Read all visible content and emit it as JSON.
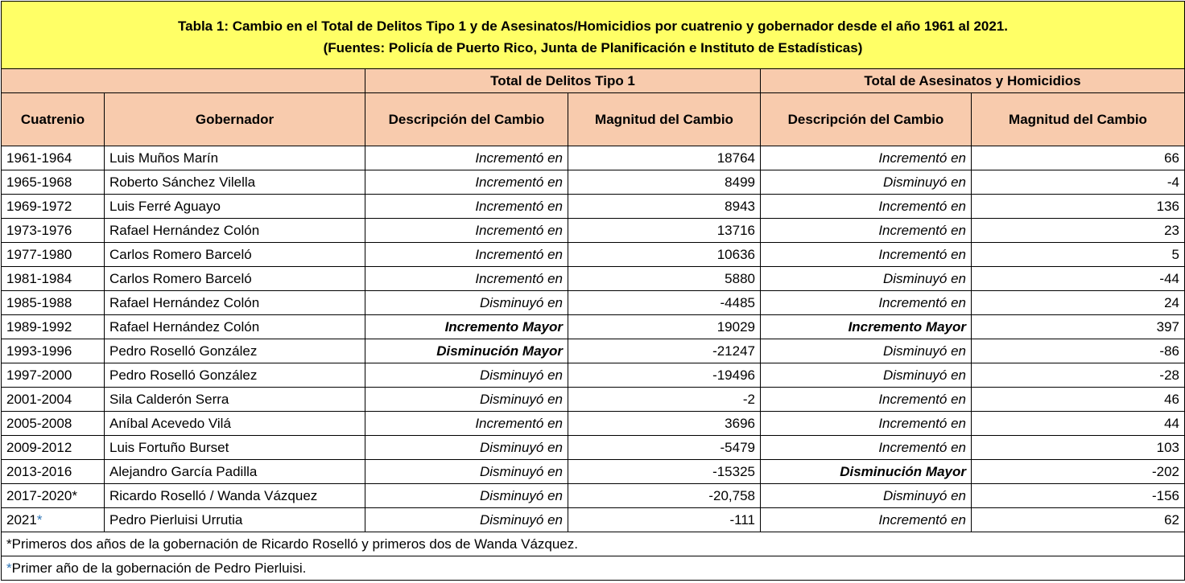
{
  "title": {
    "line1": "Tabla 1: Cambio en el Total de Delitos Tipo 1 y de Asesinatos/Homicidios por cuatrenio y gobernador desde el año 1961 al 2021.",
    "line2": "(Fuentes: Policía de Puerto Rico, Junta de Planificación e Instituto de Estadísticas)"
  },
  "groups": {
    "delitos": "Total de Delitos Tipo 1",
    "asesinatos": "Total de Asesinatos y Homicidios"
  },
  "columns": {
    "cuatrenio": "Cuatrenio",
    "gobernador": "Gobernador",
    "desc1": "Descripción del Cambio",
    "mag1": "Magnitud del Cambio",
    "desc2": "Descripción del Cambio",
    "mag2": "Magnitud del Cambio"
  },
  "rows": [
    {
      "cuatrenio": "1961-1964",
      "marker": "",
      "gobernador": "Luis Muños Marín",
      "desc1": "Incrementó en",
      "mag1": "18764",
      "desc2": "Incrementó en",
      "mag2": "66"
    },
    {
      "cuatrenio": "1965-1968",
      "marker": "",
      "gobernador": "Roberto Sánchez Vilella",
      "desc1": "Incrementó en",
      "mag1": "8499",
      "desc2": "Disminuyó en",
      "mag2": "-4"
    },
    {
      "cuatrenio": "1969-1972",
      "marker": "",
      "gobernador": "Luis Ferré Aguayo",
      "desc1": "Incrementó en",
      "mag1": "8943",
      "desc2": "Incrementó en",
      "mag2": "136"
    },
    {
      "cuatrenio": "1973-1976",
      "marker": "",
      "gobernador": "Rafael Hernández Colón",
      "desc1": "Incrementó en",
      "mag1": "13716",
      "desc2": "Incrementó en",
      "mag2": "23"
    },
    {
      "cuatrenio": "1977-1980",
      "marker": "",
      "gobernador": "Carlos Romero Barceló",
      "desc1": "Incrementó en",
      "mag1": "10636",
      "desc2": "Incrementó en",
      "mag2": "5"
    },
    {
      "cuatrenio": "1981-1984",
      "marker": "",
      "gobernador": "Carlos Romero Barceló",
      "desc1": "Incrementó en",
      "mag1": "5880",
      "desc2": "Disminuyó en",
      "mag2": "-44"
    },
    {
      "cuatrenio": "1985-1988",
      "marker": "",
      "gobernador": "Rafael Hernández Colón",
      "desc1": "Disminuyó en",
      "mag1": "-4485",
      "desc2": "Incrementó en",
      "mag2": "24"
    },
    {
      "cuatrenio": "1989-1992",
      "marker": "",
      "gobernador": "Rafael Hernández Colón",
      "desc1": "Incremento Mayor",
      "desc1_bold": true,
      "mag1": "19029",
      "desc2": "Incremento Mayor",
      "desc2_bold": true,
      "mag2": "397"
    },
    {
      "cuatrenio": "1993-1996",
      "marker": "",
      "gobernador": "Pedro Roselló González",
      "desc1": "Disminución Mayor",
      "desc1_bold": true,
      "mag1": "-21247",
      "desc2": "Disminuyó en",
      "mag2": "-86"
    },
    {
      "cuatrenio": "1997-2000",
      "marker": "",
      "gobernador": "Pedro Roselló González",
      "desc1": "Disminuyó en",
      "mag1": "-19496",
      "desc2": "Disminuyó en",
      "mag2": "-28"
    },
    {
      "cuatrenio": "2001-2004",
      "marker": "",
      "gobernador": "Sila Calderón Serra",
      "desc1": "Disminuyó en",
      "mag1": "-2",
      "desc2": "Incrementó en",
      "mag2": "46"
    },
    {
      "cuatrenio": "2005-2008",
      "marker": "",
      "gobernador": "Aníbal Acevedo Vilá",
      "desc1": "Incrementó en",
      "mag1": "3696",
      "desc2": "Incrementó en",
      "mag2": "44"
    },
    {
      "cuatrenio": "2009-2012",
      "marker": "",
      "gobernador": "Luis Fortuño Burset",
      "desc1": "Disminuyó en",
      "mag1": "-5479",
      "desc2": "Incrementó en",
      "mag2": "103"
    },
    {
      "cuatrenio": "2013-2016",
      "marker": "",
      "gobernador": "Alejandro García Padilla",
      "desc1": "Disminuyó en",
      "mag1": "-15325",
      "desc2": "Disminución Mayor",
      "desc2_bold": true,
      "mag2": "-202"
    },
    {
      "cuatrenio": "2017-2020",
      "marker": "*",
      "marker_color": "#000000",
      "gobernador": "Ricardo Roselló / Wanda Vázquez",
      "desc1": "Disminuyó en",
      "mag1": "-20,758",
      "desc2": "Disminuyó en",
      "mag2": "-156"
    },
    {
      "cuatrenio": "2021",
      "marker": "*",
      "marker_color": "#2e75b6",
      "gobernador": "Pedro Pierluisi Urrutia",
      "desc1": "Disminuyó en",
      "mag1": "-111",
      "desc2": "Incrementó en",
      "mag2": "62"
    }
  ],
  "footnotes": [
    {
      "marker": "*",
      "marker_color": "#000000",
      "text": "Primeros dos años de la gobernación de Ricardo Roselló y primeros dos de Wanda Vázquez."
    },
    {
      "marker": "*",
      "marker_color": "#2e75b6",
      "text": "Primer año de la gobernación de Pedro Pierluisi."
    }
  ],
  "colors": {
    "title_bg": "#ffff66",
    "header_bg": "#f8cbad",
    "marker_blue": "#2e75b6"
  }
}
